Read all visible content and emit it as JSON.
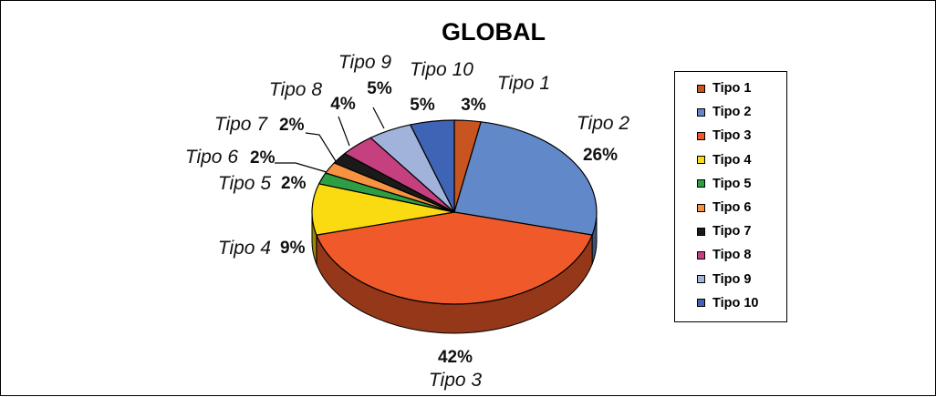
{
  "chart_data": {
    "type": "pie",
    "title": "GLOBAL",
    "categories": [
      "Tipo 1",
      "Tipo 2",
      "Tipo 3",
      "Tipo 4",
      "Tipo 5",
      "Tipo 6",
      "Tipo 7",
      "Tipo 8",
      "Tipo 9",
      "Tipo 10"
    ],
    "values": [
      3,
      26,
      42,
      9,
      2,
      2,
      2,
      4,
      5,
      5
    ],
    "value_labels": [
      "3%",
      "26%",
      "42%",
      "9%",
      "2%",
      "2%",
      "2%",
      "4%",
      "5%",
      "5%"
    ],
    "colors": [
      "#C8541F",
      "#6188C8",
      "#F05A2A",
      "#FADB12",
      "#2E9E45",
      "#F79240",
      "#1A1A1A",
      "#C4407E",
      "#A2B3DB",
      "#3F63B5"
    ],
    "legend": "right",
    "style": "3d"
  }
}
